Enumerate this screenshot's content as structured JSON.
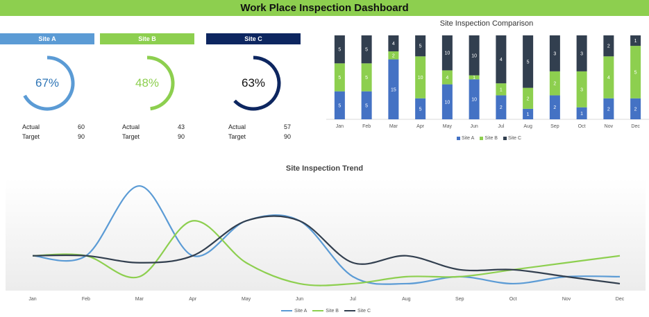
{
  "dashboard": {
    "title": "Work Place Inspection Dashboard"
  },
  "sites": [
    {
      "name": "Site A",
      "percent_label": "67%",
      "percent": 0.67,
      "actual_label": "Actual",
      "actual": "60",
      "target_label": "Target",
      "target": "90",
      "color": "#5b9bd5",
      "text_color": "#2e75b6"
    },
    {
      "name": "Site B",
      "percent_label": "48%",
      "percent": 0.48,
      "actual_label": "Actual",
      "actual": "43",
      "target_label": "Target",
      "target": "90",
      "color": "#8dcf4f",
      "text_color": "#8dcf4f"
    },
    {
      "name": "Site C",
      "percent_label": "63%",
      "percent": 0.63,
      "actual_label": "Actual",
      "actual": "57",
      "target_label": "Target",
      "target": "90",
      "color": "#0d2660",
      "text_color": "#111111"
    }
  ],
  "chart_data": [
    {
      "type": "bar",
      "stacked": true,
      "normalized": true,
      "title": "Site Inspection Comparison",
      "categories": [
        "Jan",
        "Feb",
        "Mar",
        "Apr",
        "May",
        "Jun",
        "Jul",
        "Aug",
        "Sep",
        "Oct",
        "Nov",
        "Dec"
      ],
      "series": [
        {
          "name": "Site A",
          "color": "#4472c4",
          "values": [
            5,
            5,
            15,
            5,
            10,
            10,
            2,
            1,
            2,
            1,
            2,
            2
          ]
        },
        {
          "name": "Site B",
          "color": "#8dcf4f",
          "values": [
            5,
            5,
            2,
            10,
            4,
            1,
            1,
            2,
            2,
            3,
            4,
            5
          ]
        },
        {
          "name": "Site C",
          "color": "#323f4f",
          "values": [
            5,
            5,
            4,
            5,
            10,
            10,
            4,
            5,
            3,
            3,
            2,
            1
          ]
        }
      ],
      "legend": "bottom"
    },
    {
      "type": "line",
      "smooth": true,
      "title": "Site Inspection Trend",
      "categories": [
        "Jan",
        "Feb",
        "Mar",
        "Apr",
        "May",
        "Jun",
        "Jul",
        "Aug",
        "Sep",
        "Oct",
        "Nov",
        "Dec"
      ],
      "series": [
        {
          "name": "Site A",
          "color": "#5b9bd5",
          "values": [
            5,
            5,
            15,
            5,
            10,
            10,
            2,
            1,
            2,
            1,
            2,
            2
          ]
        },
        {
          "name": "Site B",
          "color": "#8dcf4f",
          "values": [
            5,
            5,
            2,
            10,
            4,
            1,
            1,
            2,
            2,
            3,
            4,
            5
          ]
        },
        {
          "name": "Site C",
          "color": "#323f4f",
          "values": [
            5,
            5,
            4,
            5,
            10,
            10,
            4,
            5,
            3,
            3,
            2,
            1
          ]
        }
      ],
      "ylim": [
        0,
        16
      ],
      "legend": "bottom"
    }
  ]
}
